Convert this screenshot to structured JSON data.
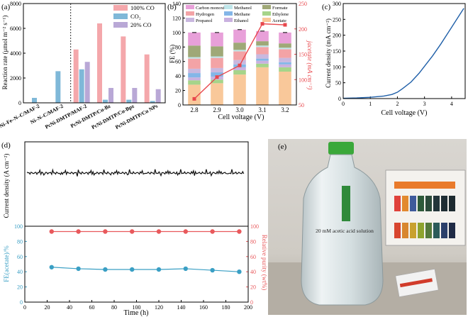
{
  "chart_data": [
    {
      "panel": "(a)",
      "type": "bar",
      "ylabel": "Reaction rate (μmol m⁻² s⁻¹)",
      "ylim": [
        0,
        8000
      ],
      "yticks": [
        0,
        2000,
        4000,
        6000,
        8000
      ],
      "categories": [
        "Ni–Fe–N–C/MAF-2",
        "Ni–N–C/MAF-2",
        "PcNi-DMTP/MAF-2",
        "PcNi-DMTP/Cu-Bz",
        "PcNi-DMTP/Cu-Bpz",
        "PcNi-DMTP/Cu NPs"
      ],
      "series": [
        {
          "name": "100% CO",
          "color": "#f4a7ab",
          "values": [
            0,
            0,
            4300,
            6400,
            5350,
            3900
          ]
        },
        {
          "name": "CO₂",
          "color": "#7fb8d8",
          "values": [
            400,
            2550,
            2700,
            250,
            250,
            150
          ]
        },
        {
          "name": "20% CO",
          "color": "#b9a8d6",
          "values": [
            0,
            0,
            3300,
            1200,
            1200,
            1100
          ]
        }
      ],
      "divider_after": 1
    },
    {
      "panel": "(b)",
      "type": "bar",
      "stacked": true,
      "xlabel": "Cell voltage (V)",
      "ylabel": "FE (%)",
      "ylim": [
        0,
        140
      ],
      "yticks": [
        0,
        20,
        40,
        60,
        80,
        100,
        120,
        140
      ],
      "categories": [
        "2.8",
        "2.9",
        "3.0",
        "3.1",
        "3.2"
      ],
      "series": [
        {
          "name": "Acetate",
          "color": "#f9c89a",
          "values": [
            28,
            30,
            42,
            52,
            46
          ]
        },
        {
          "name": "Ethylene",
          "color": "#a6d48a",
          "values": [
            6,
            5,
            6,
            5,
            6
          ]
        },
        {
          "name": "Ethanol",
          "color": "#c9b1df",
          "values": [
            4,
            4,
            4,
            4,
            4
          ]
        },
        {
          "name": "Methane",
          "color": "#84b6e8",
          "values": [
            6,
            6,
            4,
            3,
            3
          ]
        },
        {
          "name": "Propanol",
          "color": "#c9b8df",
          "values": [
            6,
            6,
            6,
            6,
            6
          ]
        },
        {
          "name": "Hydrogen",
          "color": "#f3a3a6",
          "values": [
            14,
            14,
            12,
            10,
            12
          ]
        },
        {
          "name": "Methanol",
          "color": "#bfe6ea",
          "values": [
            2,
            2,
            2,
            2,
            2
          ]
        },
        {
          "name": "Formate",
          "color": "#9fa877",
          "values": [
            16,
            14,
            10,
            6,
            6
          ]
        },
        {
          "name": "Carbon monoxide",
          "color": "#e8a0d9",
          "values": [
            18,
            19,
            18,
            14,
            15
          ]
        }
      ],
      "line": {
        "name": "j_acetate",
        "ylabel": "jacetate (mA cm⁻²)",
        "ylim": [
          50,
          250
        ],
        "yticks": [
          50,
          100,
          150,
          200,
          250
        ],
        "values": [
          62,
          105,
          128,
          210,
          208
        ],
        "color": "#e8474c"
      }
    },
    {
      "panel": "(c)",
      "type": "line",
      "xlabel": "Cell voltage (V)",
      "ylabel": "Current density (mA cm⁻²)",
      "xlim": [
        0,
        4.5
      ],
      "ylim": [
        0,
        300
      ],
      "xticks": [
        0,
        1,
        2,
        3,
        4
      ],
      "yticks": [
        0,
        50,
        100,
        150,
        200,
        250,
        300
      ],
      "x": [
        0,
        0.5,
        1.0,
        1.5,
        1.8,
        2.0,
        2.2,
        2.5,
        2.8,
        3.0,
        3.3,
        3.6,
        4.0,
        4.3,
        4.45
      ],
      "y": [
        1,
        2,
        4,
        8,
        13,
        20,
        32,
        52,
        80,
        102,
        135,
        172,
        225,
        265,
        285
      ],
      "color": "#1f5fa8"
    },
    {
      "panel": "(d)",
      "type": "line",
      "subplots": [
        {
          "ylabel": "Current density (A cm⁻²)",
          "ylim": [
            -1.0,
            0.3
          ],
          "mean_value": -0.18
        },
        {
          "xlabel": "Time (h)",
          "xlim": [
            0,
            200
          ],
          "xticks": [
            0,
            20,
            40,
            60,
            80,
            100,
            120,
            140,
            160,
            180,
            200
          ],
          "left_axis": {
            "label": "FE(acetate)/%",
            "ylim": [
              0,
              100
            ],
            "yticks": [
              0,
              20,
              40,
              60,
              80,
              100
            ],
            "color": "#3a9fc4"
          },
          "right_axis": {
            "label": "Relative purity (wt%)",
            "ylim": [
              0,
              100
            ],
            "yticks": [
              0,
              20,
              40,
              60,
              80,
              100
            ],
            "color": "#e8595c"
          },
          "x": [
            24,
            48,
            72,
            96,
            120,
            144,
            168,
            192
          ],
          "fe_acetate": [
            46,
            44,
            43,
            43,
            43,
            44,
            42,
            40
          ],
          "purity": [
            93,
            93,
            93,
            93,
            93,
            93,
            93,
            93
          ]
        }
      ]
    }
  ],
  "panel_e": {
    "label": "(e)",
    "bottle_label": "20 mM acetic acid solution",
    "description": "photo"
  }
}
